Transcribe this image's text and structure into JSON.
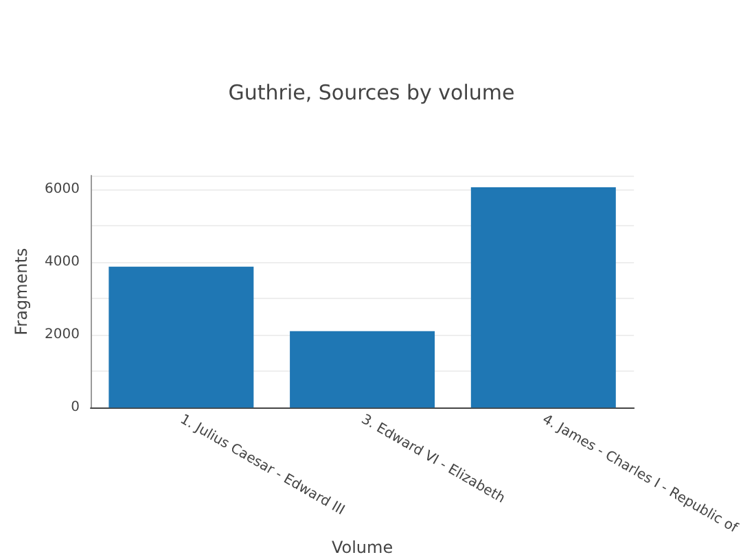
{
  "chart_data": {
    "type": "bar",
    "title": "Guthrie, Sources by volume",
    "xlabel": "Volume",
    "ylabel": "Fragments",
    "categories": [
      "1. Julius Caesar - Edward III",
      "3. Edward VI - Elizabeth",
      "4. James - Charles I - Republic of"
    ],
    "values": [
      3870,
      2100,
      6050
    ],
    "color": "#1f77b4",
    "ylim": [
      0,
      6370
    ],
    "yticks": [
      0,
      2000,
      4000,
      6000
    ],
    "grid": "y"
  }
}
